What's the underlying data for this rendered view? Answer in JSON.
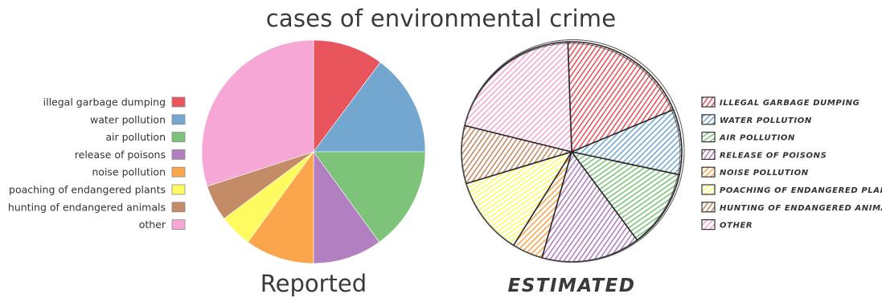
{
  "title": "cases of environmental crime",
  "chart_data": [
    {
      "type": "pie",
      "title": "Reported",
      "style": "clean",
      "legend_position": "left",
      "categories": [
        "illegal garbage dumping",
        "water pollution",
        "air pollution",
        "release of poisons",
        "noise pollution",
        "poaching of endangered plants",
        "hunting of endangered animals",
        "other"
      ],
      "colors": [
        "#e8555d",
        "#74a7d0",
        "#7dc47a",
        "#b280c0",
        "#fba54c",
        "#fdfb5f",
        "#c38b66",
        "#f6a7d5"
      ],
      "values": [
        10.2,
        14.8,
        15.0,
        10.0,
        10.0,
        4.8,
        5.2,
        30.0
      ]
    },
    {
      "type": "pie",
      "title": "ESTIMATED",
      "style": "sketch",
      "legend_position": "right",
      "categories": [
        "ILLEGAL GARBAGE DUMPING",
        "WATER POLLUTION",
        "AIR POLLUTION",
        "RELEASE OF POISONS",
        "NOISE POLLUTION",
        "POACHING OF ENDANGERED PLANTS",
        "HUNTING OF ENDANGERED ANIMALS",
        "OTHER"
      ],
      "colors": [
        "#e8555d",
        "#74a7d0",
        "#7dc47a",
        "#b280c0",
        "#fba54c",
        "#fdfb5f",
        "#c38b66",
        "#f6a7d5"
      ],
      "values": [
        19.3,
        9.6,
        11.5,
        14.5,
        4.5,
        11.5,
        8.5,
        20.6
      ]
    }
  ]
}
